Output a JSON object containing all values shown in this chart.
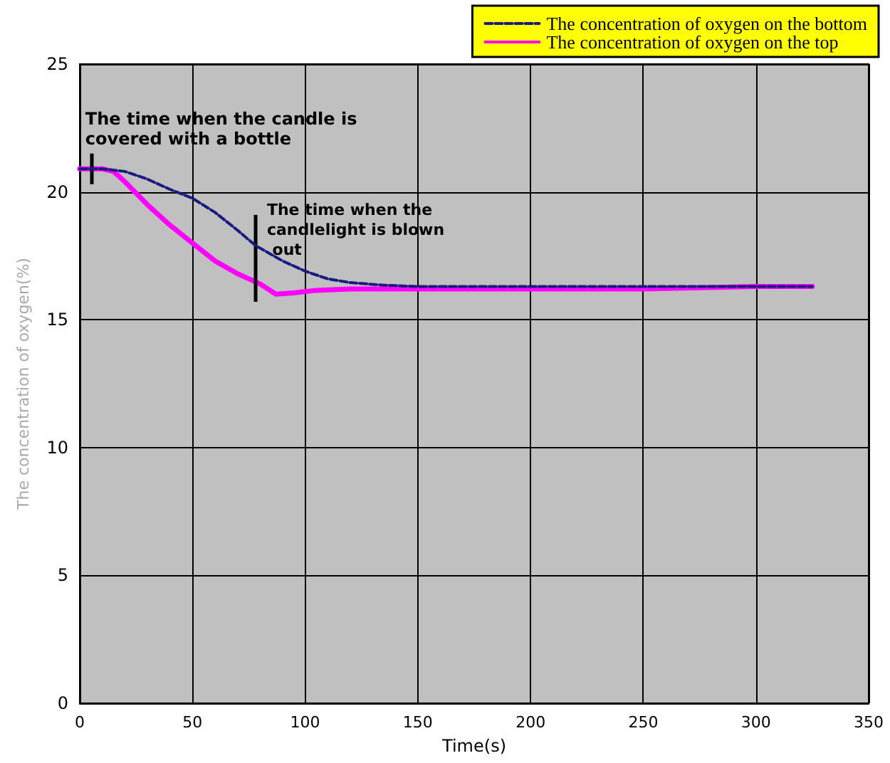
{
  "chart_data": {
    "type": "line",
    "xlabel": "Time(s)",
    "ylabel": "The concentration of oxygen(%)",
    "xlim": [
      0,
      350
    ],
    "xticks": [
      0,
      50,
      100,
      150,
      200,
      250,
      300,
      350
    ],
    "ylim": [
      0,
      25
    ],
    "yticks": [
      0,
      5,
      10,
      15,
      20,
      25
    ],
    "grid": true,
    "legend": "top right",
    "marker": "none",
    "series": [
      {
        "name": "The concentration of oxygen on the bottom",
        "color": "#1a1a80",
        "line_style": "dashed",
        "x": [
          0,
          10,
          20,
          30,
          40,
          50,
          60,
          70,
          78,
          90,
          100,
          110,
          120,
          135,
          150,
          200,
          250,
          300,
          325
        ],
        "values": [
          20.9,
          20.9,
          20.8,
          20.5,
          20.1,
          19.75,
          19.2,
          18.5,
          17.9,
          17.3,
          16.9,
          16.6,
          16.45,
          16.35,
          16.3,
          16.3,
          16.3,
          16.3,
          16.3
        ]
      },
      {
        "name": "The concentration of oxygen on the top",
        "color": "#ff00ff",
        "line_style": "solid",
        "x": [
          0,
          10,
          15,
          20,
          30,
          40,
          50,
          60,
          70,
          80,
          87,
          95,
          105,
          120,
          150,
          200,
          250,
          300,
          325
        ],
        "values": [
          20.9,
          20.9,
          20.8,
          20.4,
          19.5,
          18.7,
          18.0,
          17.3,
          16.8,
          16.4,
          16.0,
          16.05,
          16.15,
          16.2,
          16.2,
          16.2,
          16.2,
          16.3,
          16.3
        ]
      }
    ],
    "annotations": [
      {
        "text": "The time when the candle is covered with a bottle",
        "x": 5,
        "y": 20.9
      },
      {
        "text": "The time when the candlelight is blown out",
        "x": 78,
        "y": 17.9
      }
    ]
  }
}
